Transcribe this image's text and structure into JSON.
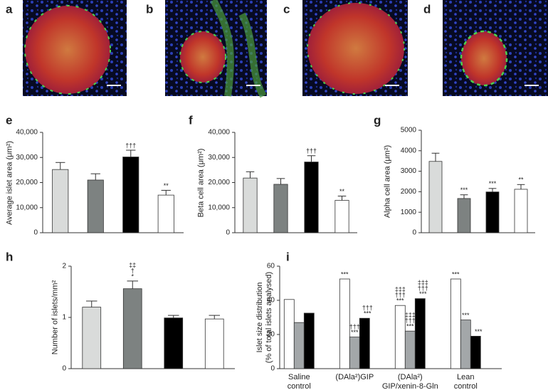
{
  "image_panels": [
    "a",
    "b",
    "c",
    "d"
  ],
  "chart_data": [
    {
      "type": "bar",
      "panel": "e",
      "ylabel": "Average islet area (μm²)",
      "ylim": [
        0,
        40000
      ],
      "yticks": [
        0,
        {
          "value": 10000,
          "label": "10,000"
        },
        {
          "value": 20000,
          "label": "20,000"
        },
        {
          "value": 30000,
          "label": "30,000"
        },
        {
          "value": 40000,
          "label": "40,000"
        }
      ],
      "values": [
        25200,
        21000,
        30200,
        15000
      ],
      "errors": [
        2800,
        2500,
        2700,
        1900
      ],
      "colors": [
        "#d9dbda",
        "#7d8281",
        "#000000",
        "#ffffff"
      ],
      "annotations": [
        null,
        null,
        [
          "†††"
        ],
        [
          "**"
        ]
      ]
    },
    {
      "type": "bar",
      "panel": "f",
      "ylabel": "Beta cell area (μm²)",
      "ylim": [
        0,
        40000
      ],
      "yticks": [
        0,
        {
          "value": 10000,
          "label": "10,000"
        },
        {
          "value": 20000,
          "label": "20,000"
        },
        {
          "value": 30000,
          "label": "30,000"
        },
        {
          "value": 40000,
          "label": "40,000"
        }
      ],
      "values": [
        21800,
        19300,
        28200,
        12900
      ],
      "errors": [
        2500,
        2300,
        2500,
        1700
      ],
      "colors": [
        "#d9dbda",
        "#7d8281",
        "#000000",
        "#ffffff"
      ],
      "annotations": [
        null,
        null,
        [
          "†††"
        ],
        [
          "**"
        ]
      ]
    },
    {
      "type": "bar",
      "panel": "g",
      "ylabel": "Alpha cell area (μm²)",
      "ylim": [
        0,
        5000
      ],
      "yticks": [
        0,
        1000,
        2000,
        3000,
        4000,
        5000
      ],
      "values": [
        3480,
        1670,
        1990,
        2120
      ],
      "errors": [
        400,
        180,
        170,
        230
      ],
      "colors": [
        "#d9dbda",
        "#7d8281",
        "#000000",
        "#ffffff"
      ],
      "annotations": [
        null,
        [
          "***"
        ],
        [
          "***"
        ],
        [
          "**"
        ]
      ]
    },
    {
      "type": "bar",
      "panel": "h",
      "ylabel": "Number of islets/mm²",
      "ylim": [
        0,
        2
      ],
      "yticks": [
        0,
        1,
        2
      ],
      "values": [
        1.2,
        1.56,
        0.99,
        0.97
      ],
      "errors": [
        0.12,
        0.15,
        0.05,
        0.07
      ],
      "colors": [
        "#d9dbda",
        "#7d8281",
        "#000000",
        "#ffffff"
      ],
      "annotations": [
        null,
        [
          "‡‡",
          "†",
          "*"
        ],
        null,
        null
      ]
    },
    {
      "type": "grouped_bar",
      "panel": "i",
      "ylabel": "Islet size distribution\n(% of total islets analysed)",
      "ylim": [
        0,
        60
      ],
      "yticks": [
        0,
        20,
        40,
        60
      ],
      "categories": [
        "Saline\ncontrol",
        "(DAla²)GIP",
        "(DAla²)\nGIP/xenin-8-Gln",
        "Lean\ncontrol"
      ],
      "series": [
        {
          "color": "#ffffff",
          "values": [
            40.5,
            52.5,
            37,
            52.5
          ],
          "annotations": [
            null,
            [
              "***"
            ],
            [
              "‡‡‡",
              "†††",
              "***"
            ],
            [
              "***"
            ]
          ]
        },
        {
          "color": "#a3a7a9",
          "values": [
            27,
            18.5,
            22,
            28.5
          ],
          "annotations": [
            null,
            [
              "†††",
              "***"
            ],
            [
              "‡‡‡",
              "†††",
              "***"
            ],
            [
              "***"
            ]
          ]
        },
        {
          "color": "#000000",
          "values": [
            32.5,
            29.5,
            41,
            19
          ],
          "annotations": [
            null,
            [
              "†††",
              "***"
            ],
            [
              "‡‡‡",
              "†††",
              "***"
            ],
            [
              "***"
            ]
          ]
        }
      ]
    }
  ]
}
